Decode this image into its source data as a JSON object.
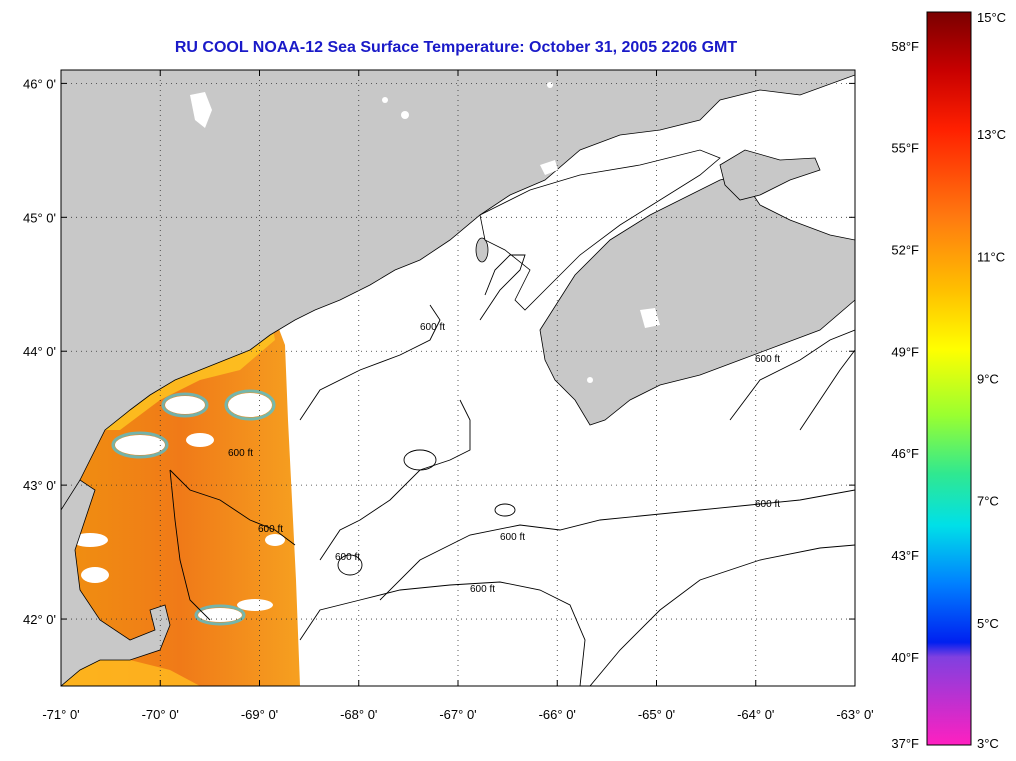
{
  "title": "RU COOL  NOAA-12  Sea Surface Temperature:  October 31, 2005 2206 GMT",
  "map": {
    "lon_ticks": [
      "-71° 0'",
      "-70° 0'",
      "-69° 0'",
      "-68° 0'",
      "-67° 0'",
      "-66° 0'",
      "-65° 0'",
      "-64° 0'",
      "-63° 0'"
    ],
    "lat_ticks": [
      "46° 0'",
      "45° 0'",
      "44° 0'",
      "43° 0'",
      "42° 0'"
    ],
    "lon_values": [
      -71,
      -70,
      -69,
      -68,
      -67,
      -66,
      -65,
      -64,
      -63
    ],
    "lat_values": [
      46,
      45,
      44,
      43,
      42
    ],
    "lon_range": [
      -71,
      -63
    ],
    "lat_range": [
      41.5,
      46.1
    ],
    "grid": "dotted",
    "contour_label": "600 ft",
    "land_color": "#c8c8c8",
    "cloud_color": "#ffffff"
  },
  "colorbar": {
    "fahrenheit_labels": [
      "58°F",
      "55°F",
      "52°F",
      "49°F",
      "46°F",
      "43°F",
      "40°F",
      "37°F"
    ],
    "fahrenheit_values": [
      58,
      55,
      52,
      49,
      46,
      43,
      40,
      37
    ],
    "celsius_labels": [
      "15°C",
      "13°C",
      "11°C",
      "9°C",
      "7°C",
      "5°C",
      "3°C"
    ],
    "celsius_values": [
      15,
      13,
      11,
      9,
      7,
      5,
      3
    ],
    "range_c": [
      3,
      15
    ]
  }
}
